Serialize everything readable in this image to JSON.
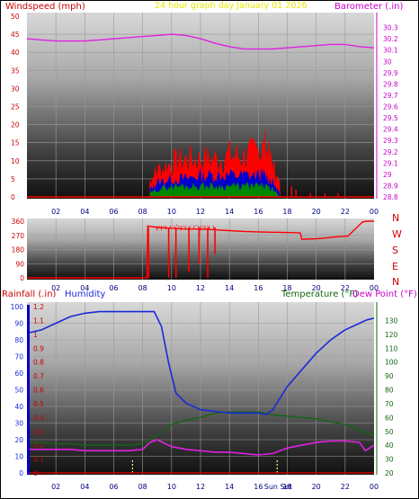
{
  "title": "24 hour graph day   January 01 2026",
  "colors": {
    "wind": "#ff0000",
    "gust_fill": "#ff0000",
    "avg_fill": "#0000cc",
    "low_fill": "#008800",
    "baro": "#e020e0",
    "dir": "#ff0000",
    "humidity": "#1a2ad8",
    "temperature": "#116611",
    "dewpoint": "#e020e0",
    "rainfall": "#0000cc",
    "hour_labels": "#000080",
    "sun_markers": "#ffff80"
  },
  "chart_data": [
    {
      "type": "line",
      "name": "wind-baro",
      "ylabel": "Windspeed (mph)",
      "y2label": "Barometer (.in)",
      "ylim": [
        0,
        50
      ],
      "y2lim": [
        28.8,
        30.4
      ],
      "yticks": [
        "0",
        "5",
        "10",
        "15",
        "20",
        "25",
        "30",
        "35",
        "40",
        "45",
        "50"
      ],
      "y2ticks": [
        "28.8",
        "28.9",
        "29",
        "29.1",
        "29.2",
        "29.3",
        "29.4",
        "29.5",
        "29.6",
        "29.7",
        "29.8",
        "29.9",
        "30",
        "30.1",
        "30.2",
        "30.3"
      ],
      "x_ticks": [
        "02",
        "04",
        "06",
        "08",
        "10",
        "12",
        "14",
        "16",
        "18",
        "20",
        "22",
        "00"
      ],
      "xlim": [
        0,
        24
      ],
      "barometer": {
        "x": [
          0,
          1,
          2,
          3,
          4,
          5,
          6,
          7,
          8,
          9,
          10,
          11,
          12,
          13,
          14,
          15,
          16,
          17,
          18,
          19,
          20,
          21,
          22,
          23,
          24
        ],
        "values": [
          30.2,
          30.19,
          30.18,
          30.18,
          30.18,
          30.19,
          30.2,
          30.21,
          30.22,
          30.23,
          30.24,
          30.23,
          30.2,
          30.16,
          30.13,
          30.11,
          30.11,
          30.11,
          30.12,
          30.13,
          30.14,
          30.15,
          30.15,
          30.13,
          30.12
        ]
      },
      "wind_gust_max": {
        "x": [
          8.5,
          9,
          10,
          11,
          12,
          13,
          14,
          15,
          16,
          16.5,
          17,
          17.5
        ],
        "values": [
          4,
          7,
          9,
          10,
          10,
          10,
          11,
          11,
          12,
          13,
          8,
          3
        ]
      },
      "wind_avg_max": {
        "x": [
          8.5,
          9,
          10,
          11,
          12,
          13,
          14,
          15,
          16,
          16.5,
          17,
          17.5
        ],
        "values": [
          2,
          4,
          5,
          5,
          6,
          6,
          6,
          6,
          6,
          6,
          4,
          1
        ]
      },
      "wind_low_max": {
        "x": [
          8.5,
          9,
          10,
          11,
          12,
          13,
          14,
          15,
          16,
          16.5,
          17,
          17.5
        ],
        "values": [
          1,
          2,
          3,
          3,
          3,
          3,
          3,
          3,
          3,
          3,
          2,
          0
        ]
      },
      "wind_spikes": {
        "x": [
          18.3,
          18.6,
          19.6,
          20.6,
          21.5
        ],
        "values": [
          3,
          2,
          1,
          1,
          1
        ]
      }
    },
    {
      "type": "line",
      "name": "wind-direction",
      "yticks": [
        "0",
        "90",
        "180",
        "270",
        "360"
      ],
      "ylim": [
        0,
        360
      ],
      "dir_labels": [
        "N",
        "W",
        "S",
        "E",
        "N"
      ],
      "x_ticks": [
        "02",
        "04",
        "06",
        "08",
        "10",
        "12",
        "14",
        "16",
        "18",
        "20",
        "22",
        "00"
      ],
      "xlim": [
        0,
        24
      ],
      "direction": {
        "x": [
          0,
          8.3,
          8.35,
          9,
          10,
          11,
          12,
          13,
          14,
          15,
          16,
          17,
          18,
          18.9,
          19.0,
          20.0,
          20.8,
          21.3,
          22.2,
          23.2,
          23.5,
          24
        ],
        "values": [
          0,
          0,
          330,
          320,
          315,
          310,
          310,
          305,
          300,
          295,
          292,
          290,
          288,
          285,
          245,
          248,
          255,
          260,
          265,
          355,
          360,
          360
        ]
      },
      "drops": {
        "x": [
          8.4,
          9.8,
          10.3,
          11.2,
          11.9,
          12.5,
          13.0
        ],
        "values": [
          0,
          0,
          0,
          40,
          90,
          0,
          150
        ]
      }
    },
    {
      "type": "line",
      "name": "temp-humidity",
      "legend": [
        "Rainfall (.in)",
        "Humidity",
        "Temperature (°F)",
        "Dew Point (°F)"
      ],
      "ylabel_rain": "Rainfall (.in)",
      "ylabel_hum": "Humidity",
      "y2label_temp": "Temperature (°F)",
      "y2label_dew": "Dew Point (°F)",
      "yticks_hum": [
        "0",
        "10",
        "20",
        "30",
        "40",
        "50",
        "60",
        "70",
        "80",
        "90",
        "100"
      ],
      "yticks_rain": [
        "0",
        "0.1",
        "0.2",
        "0.3",
        "0.4",
        "0.5",
        "0.6",
        "0.7",
        "0.8",
        "0.9",
        "1",
        "1.1",
        "1.2"
      ],
      "y2ticks_temp": [
        "20",
        "30",
        "40",
        "50",
        "60",
        "70",
        "80",
        "90",
        "100",
        "110",
        "120",
        "130"
      ],
      "ylim_hum": [
        0,
        100
      ],
      "y2lim_temp": [
        20,
        140
      ],
      "x_ticks": [
        "02",
        "04",
        "06",
        "08",
        "10",
        "12",
        "14",
        "16",
        "18",
        "20",
        "22",
        "00"
      ],
      "sun_label": "Sun Set",
      "sunrise_x": 7.3,
      "sunset_x": 17.3,
      "xlim": [
        0,
        24
      ],
      "humidity": {
        "x": [
          0,
          1,
          2,
          3,
          4,
          5,
          6,
          7,
          8,
          8.8,
          9.3,
          9.8,
          10.3,
          11,
          12,
          13,
          14,
          15,
          16,
          16.5,
          17,
          17.5,
          18,
          19,
          20,
          21,
          22,
          23,
          23.5,
          24
        ],
        "values": [
          84,
          86,
          90,
          94,
          96,
          97,
          97,
          97,
          97,
          97,
          88,
          66,
          48,
          42,
          38,
          37,
          36,
          36,
          36,
          35,
          38,
          45,
          52,
          62,
          72,
          80,
          86,
          90,
          92,
          93
        ]
      },
      "temperature": {
        "x": [
          0,
          1,
          2,
          3,
          4,
          5,
          6,
          7,
          8,
          9,
          10,
          11,
          12,
          13,
          14,
          15,
          16,
          17,
          18,
          19,
          20,
          21,
          22,
          23,
          24
        ],
        "values": [
          42,
          42,
          41,
          41,
          40,
          40,
          40,
          40,
          41,
          47,
          55,
          58,
          60,
          63,
          64,
          64,
          64,
          62,
          61,
          60,
          59,
          57,
          55,
          51,
          47
        ]
      },
      "dewpoint": {
        "x": [
          0,
          1,
          2,
          3,
          4,
          5,
          6,
          7,
          8,
          8.5,
          9,
          10,
          11,
          12,
          13,
          14,
          15,
          16,
          17,
          18,
          19,
          20,
          21,
          22,
          23,
          23.4,
          23.7,
          24
        ],
        "values": [
          37,
          37,
          37,
          37,
          36,
          36,
          36,
          36,
          37,
          42,
          44,
          39,
          37,
          36,
          35,
          35,
          34,
          33,
          34,
          38,
          40,
          42,
          43,
          43,
          42,
          36,
          38,
          40
        ]
      }
    }
  ]
}
